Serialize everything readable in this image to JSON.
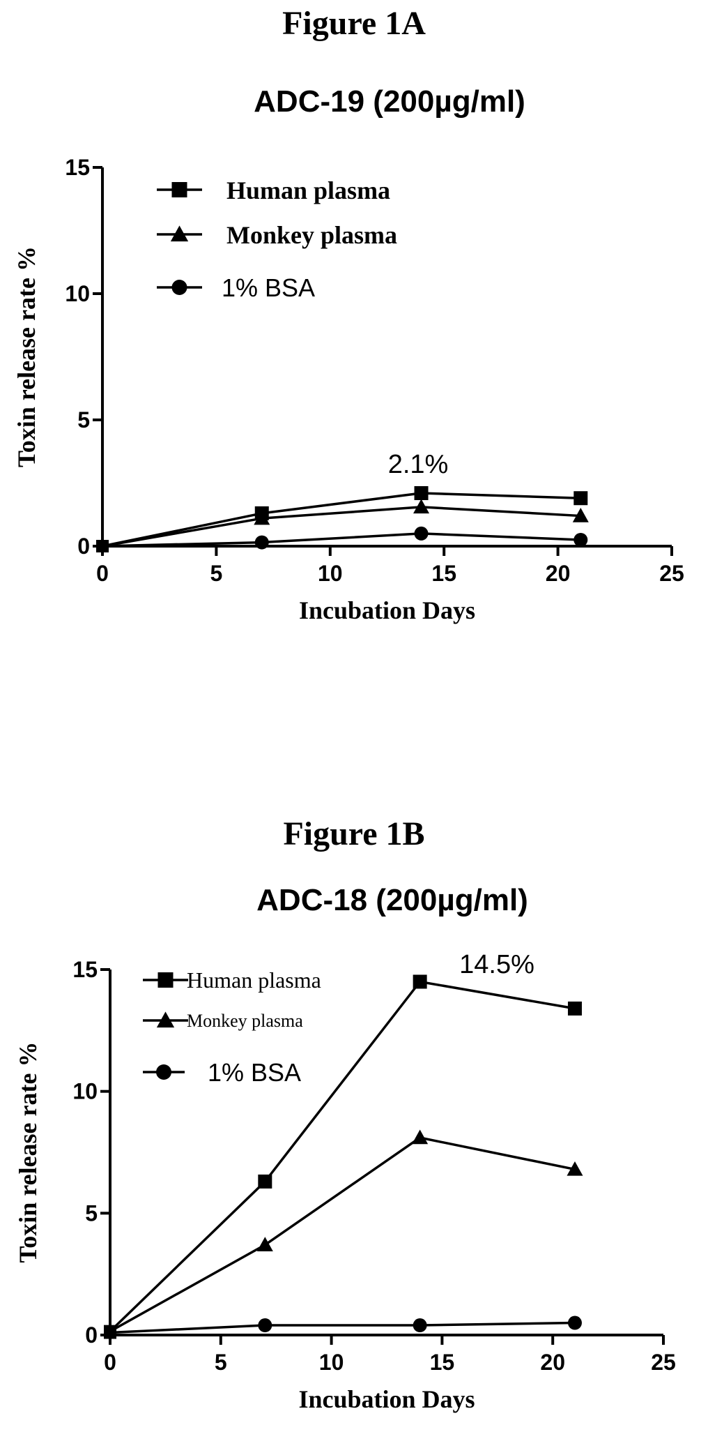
{
  "chart_data": [
    {
      "type": "line",
      "figure_label": "Figure 1A",
      "title": "ADC-19 (200µg/ml)",
      "xlabel": "Incubation Days",
      "ylabel": "Toxin release rate %",
      "xlim": [
        0,
        25
      ],
      "ylim": [
        0,
        15
      ],
      "xticks": [
        "0",
        "5",
        "10",
        "15",
        "20",
        "25"
      ],
      "yticks": [
        "0",
        "5",
        "10",
        "15"
      ],
      "x": [
        0,
        7,
        14,
        21
      ],
      "series": [
        {
          "name": "Human plasma",
          "marker": "square",
          "values": [
            0,
            1.3,
            2.1,
            1.9
          ]
        },
        {
          "name": "Monkey plasma",
          "marker": "triangle",
          "values": [
            0,
            1.1,
            1.55,
            1.2
          ]
        },
        {
          "name": "1% BSA",
          "marker": "circle",
          "values": [
            0,
            0.15,
            0.5,
            0.25
          ]
        }
      ],
      "annotation": {
        "text": "2.1%",
        "x": 14,
        "y": 2.1
      },
      "grid": false,
      "legend": "top-left"
    },
    {
      "type": "line",
      "figure_label": "Figure 1B",
      "title": "ADC-18 (200µg/ml)",
      "xlabel": "Incubation Days",
      "ylabel": "Toxin release rate %",
      "xlim": [
        0,
        25
      ],
      "ylim": [
        0,
        15
      ],
      "xticks": [
        "0",
        "5",
        "10",
        "15",
        "20",
        "25"
      ],
      "yticks": [
        "0",
        "5",
        "10",
        "15"
      ],
      "x": [
        0,
        7,
        14,
        21
      ],
      "series": [
        {
          "name": "Human plasma",
          "marker": "square",
          "values": [
            0.15,
            6.3,
            14.5,
            13.4
          ]
        },
        {
          "name": "Monkey plasma",
          "marker": "triangle",
          "values": [
            0.15,
            3.7,
            8.1,
            6.8
          ]
        },
        {
          "name": "1% BSA",
          "marker": "circle",
          "values": [
            0.1,
            0.4,
            0.4,
            0.5
          ]
        }
      ],
      "annotation": {
        "text": "14.5%",
        "x": 14,
        "y": 14.5
      },
      "grid": false,
      "legend": "top-left"
    }
  ]
}
